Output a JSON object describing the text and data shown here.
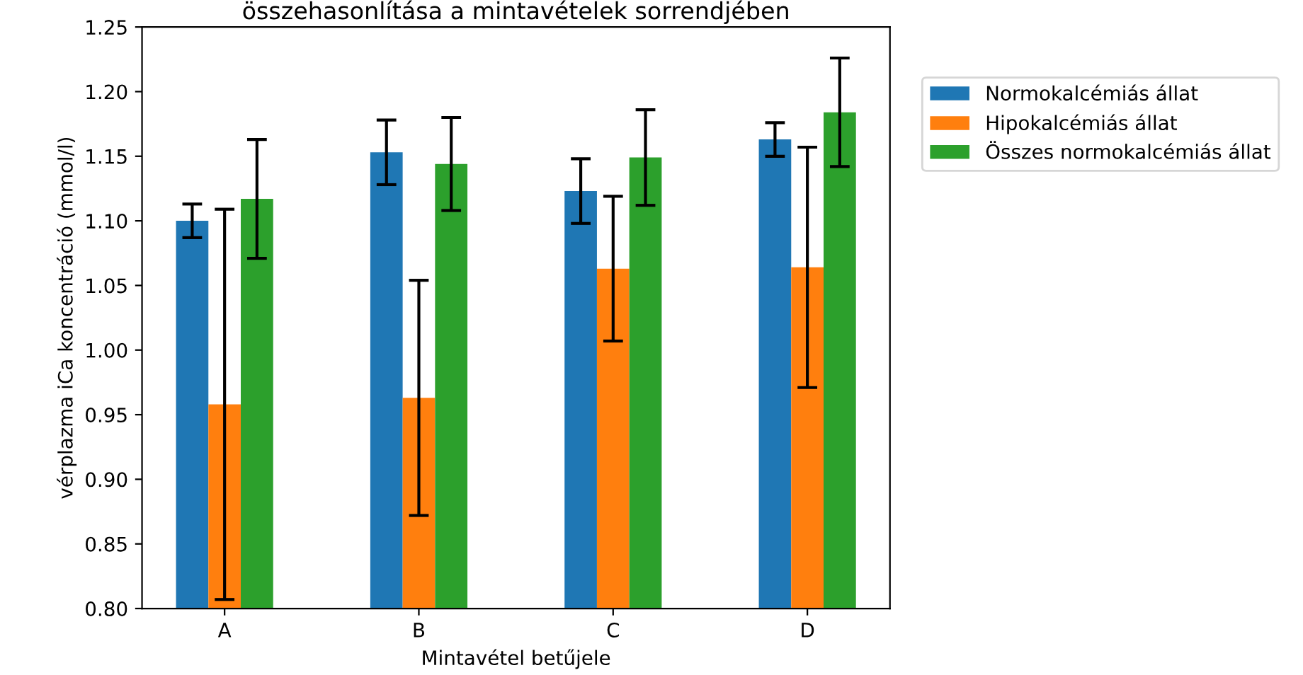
{
  "chart_data": {
    "type": "bar",
    "title": "összehasonlítása a mintavételek sorrendjében",
    "xlabel": "Mintavétel betűjele",
    "ylabel": "vérplazma iCa koncentráció (mmol/l)",
    "categories": [
      "A",
      "B",
      "C",
      "D"
    ],
    "series": [
      {
        "name": "Normokalcémiás állat",
        "color": "#1f77b4",
        "values": [
          1.1,
          1.153,
          1.123,
          1.163
        ],
        "errors": [
          0.013,
          0.025,
          0.025,
          0.013
        ]
      },
      {
        "name": "Hipokalcémiás állat",
        "color": "#ff7f0e",
        "values": [
          0.958,
          0.963,
          1.063,
          1.064
        ],
        "errors": [
          0.151,
          0.091,
          0.056,
          0.093
        ]
      },
      {
        "name": "Összes normokalcémiás állat",
        "color": "#2ca02c",
        "values": [
          1.117,
          1.144,
          1.149,
          1.184
        ],
        "errors": [
          0.046,
          0.036,
          0.037,
          0.042
        ]
      }
    ],
    "ylim": [
      0.8,
      1.25
    ],
    "yticks": [
      {
        "value": 0.8,
        "label": "0.80"
      },
      {
        "value": 0.85,
        "label": "0.85"
      },
      {
        "value": 0.9,
        "label": "0.90"
      },
      {
        "value": 0.95,
        "label": "0.95"
      },
      {
        "value": 1.0,
        "label": "1.00"
      },
      {
        "value": 1.05,
        "label": "1.05"
      },
      {
        "value": 1.1,
        "label": "1.10"
      },
      {
        "value": 1.15,
        "label": "1.15"
      },
      {
        "value": 1.2,
        "label": "1.20"
      },
      {
        "value": 1.25,
        "label": "1.25"
      }
    ],
    "grid": false,
    "legend": "right"
  }
}
